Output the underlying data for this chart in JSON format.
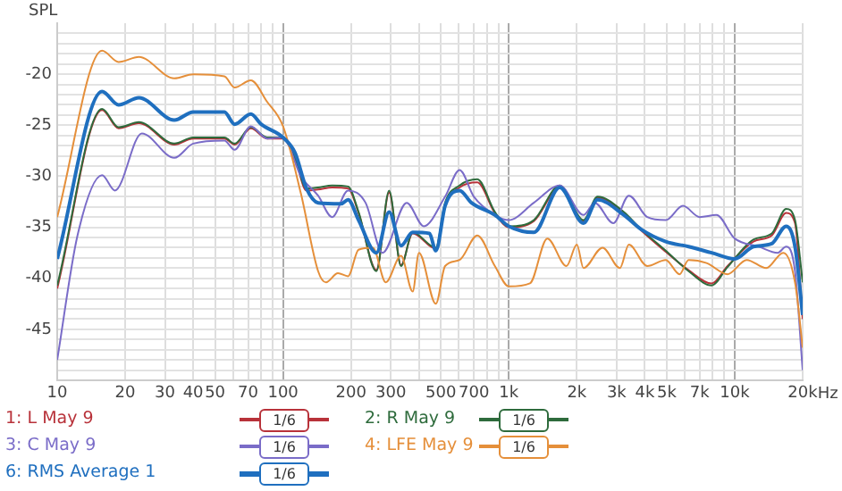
{
  "chart_data": {
    "type": "line",
    "ylabel": "SPL",
    "xlabel": "Hz",
    "log": "x",
    "grid": true,
    "legend": "bottom",
    "marker": "none",
    "line_style": "solid",
    "xlim": [
      10,
      20000
    ],
    "ylim": [
      -50,
      -15
    ],
    "xticks": [
      10,
      20,
      30,
      40,
      50,
      {
        "value": 60,
        "label": null
      },
      70,
      {
        "value": 80,
        "label": null
      },
      {
        "value": 90,
        "label": null
      },
      100,
      200,
      300,
      {
        "value": 400,
        "label": null
      },
      500,
      {
        "value": 600,
        "label": null
      },
      700,
      {
        "value": 800,
        "label": null
      },
      {
        "value": 900,
        "label": null
      },
      {
        "value": 1000,
        "label": "1k"
      },
      {
        "value": 2000,
        "label": "2k"
      },
      {
        "value": 3000,
        "label": "3k"
      },
      {
        "value": 4000,
        "label": "4k"
      },
      {
        "value": 5000,
        "label": "5k"
      },
      {
        "value": 6000,
        "label": null
      },
      {
        "value": 7000,
        "label": "7k"
      },
      {
        "value": 8000,
        "label": null
      },
      {
        "value": 9000,
        "label": null
      },
      {
        "value": 10000,
        "label": "10k"
      },
      {
        "value": 20000,
        "label": "20k"
      }
    ],
    "yticks": [
      {
        "value": -49,
        "label": null
      },
      {
        "value": -48,
        "label": null
      },
      {
        "value": -47,
        "label": null
      },
      {
        "value": -46,
        "label": null
      },
      -45,
      {
        "value": -44,
        "label": null
      },
      {
        "value": -43,
        "label": null
      },
      {
        "value": -42,
        "label": null
      },
      {
        "value": -41,
        "label": null
      },
      -40,
      {
        "value": -39,
        "label": null
      },
      {
        "value": -38,
        "label": null
      },
      {
        "value": -37,
        "label": null
      },
      {
        "value": -36,
        "label": null
      },
      -35,
      {
        "value": -34,
        "label": null
      },
      {
        "value": -33,
        "label": null
      },
      {
        "value": -32,
        "label": null
      },
      {
        "value": -31,
        "label": null
      },
      -30,
      {
        "value": -29,
        "label": null
      },
      {
        "value": -28,
        "label": null
      },
      {
        "value": -27,
        "label": null
      },
      {
        "value": -26,
        "label": null
      },
      -25,
      {
        "value": -24,
        "label": null
      },
      {
        "value": -23,
        "label": null
      },
      {
        "value": -22,
        "label": null
      },
      {
        "value": -21,
        "label": null
      },
      -20,
      {
        "value": -19,
        "label": null
      },
      {
        "value": -18,
        "label": null
      },
      {
        "value": -17,
        "label": null
      },
      {
        "value": -16,
        "label": null
      }
    ],
    "annotations": [
      "1/6",
      "1/6",
      "1/6",
      "1/6",
      "1/6"
    ],
    "series": [
      {
        "name": "1: L May 9",
        "color": "#b8323a",
        "x": [
          10,
          15.8,
          18.7,
          23,
          33,
          40,
          55,
          61,
          72,
          85,
          100,
          113,
          127,
          143,
          165,
          194,
          216,
          259,
          295,
          333,
          375,
          475,
          522,
          605,
          725,
          867,
          1000,
          1290,
          1680,
          2140,
          2470,
          3230,
          3850,
          4950,
          6250,
          7900,
          9300,
          12100,
          14600,
          16900,
          18500,
          20000
        ],
        "values": [
          -41,
          -23.5,
          -25.3,
          -24.8,
          -26.9,
          -26.3,
          -26.3,
          -26.9,
          -25.3,
          -26.3,
          -26.3,
          -28.3,
          -31.4,
          -31.3,
          -31.1,
          -31.2,
          -33.6,
          -39.2,
          -31.6,
          -38.7,
          -35.6,
          -37.1,
          -32.8,
          -31.1,
          -30.6,
          -33.6,
          -35,
          -34.4,
          -31.1,
          -34.4,
          -32.1,
          -33.6,
          -35.3,
          -37.4,
          -39.2,
          -40.5,
          -38.8,
          -36.4,
          -35.8,
          -33.6,
          -34.6,
          -44
        ]
      },
      {
        "name": "2: R May 9",
        "color": "#2e6b3c",
        "x": [
          10,
          15.8,
          18.7,
          23,
          33,
          40,
          55,
          61,
          72,
          85,
          100,
          113,
          127,
          143,
          165,
          194,
          216,
          259,
          295,
          333,
          375,
          475,
          522,
          605,
          725,
          867,
          1000,
          1290,
          1680,
          2140,
          2470,
          3230,
          3850,
          4950,
          6250,
          7900,
          9300,
          12100,
          14600,
          16900,
          18500,
          20000
        ],
        "values": [
          -40.7,
          -23.4,
          -25.2,
          -24.7,
          -26.8,
          -26.2,
          -26.2,
          -26.8,
          -25.2,
          -26.2,
          -26.2,
          -28.2,
          -31.2,
          -31.1,
          -30.9,
          -31,
          -33.5,
          -39.3,
          -31.4,
          -38.8,
          -35.5,
          -37,
          -32.6,
          -30.9,
          -30.3,
          -33.5,
          -34.9,
          -34.3,
          -30.9,
          -34.3,
          -32,
          -33.5,
          -35.2,
          -37.3,
          -39.3,
          -40.7,
          -38.9,
          -36.2,
          -35.6,
          -33.2,
          -34.3,
          -40.4
        ]
      },
      {
        "name": "3: C May 9",
        "color": "#7a6cc8",
        "x": [
          10,
          12.3,
          15.8,
          18,
          23.7,
          33,
          40,
          55,
          61,
          72,
          85,
          100,
          120,
          143,
          165,
          194,
          232,
          276,
          353,
          420,
          522,
          605,
          700,
          867,
          1000,
          1290,
          1680,
          2140,
          2400,
          2900,
          3400,
          4100,
          4950,
          5900,
          7000,
          8300,
          10000,
          12800,
          15500,
          16900,
          18500,
          20000
        ],
        "values": [
          -48,
          -35.8,
          -29.9,
          -31.4,
          -25.8,
          -28.2,
          -26.8,
          -26.5,
          -27.4,
          -25.1,
          -26.3,
          -26.2,
          -30,
          -31.9,
          -34,
          -31.4,
          -32.6,
          -37.5,
          -32.6,
          -34.9,
          -32,
          -29.4,
          -32,
          -33.8,
          -34.3,
          -32.6,
          -30.9,
          -33.8,
          -32.6,
          -34.6,
          -31.9,
          -34,
          -34.3,
          -32.9,
          -34,
          -33.8,
          -36.1,
          -36.9,
          -37.5,
          -36.9,
          -39.3,
          -49
        ]
      },
      {
        "name": "4: LFE May 9",
        "color": "#e58f3a",
        "x": [
          10,
          15.8,
          18.7,
          23,
          33,
          40,
          55,
          61,
          72,
          85,
          100,
          120,
          143,
          155,
          175,
          194,
          216,
          250,
          285,
          333,
          375,
          400,
          475,
          522,
          605,
          725,
          867,
          1000,
          1240,
          1480,
          1800,
          2000,
          2140,
          2600,
          3100,
          3400,
          4100,
          4950,
          5700,
          6250,
          7500,
          9300,
          11300,
          13800,
          16400,
          18500,
          20000
        ],
        "values": [
          -34,
          -17.7,
          -18.8,
          -18.3,
          -20.4,
          -20,
          -20.2,
          -21.3,
          -20.6,
          -22.7,
          -25.1,
          -31.7,
          -39.3,
          -40.4,
          -39.5,
          -39.8,
          -37.2,
          -37,
          -40.4,
          -37.8,
          -41.3,
          -37.5,
          -42.5,
          -38.8,
          -38.2,
          -35.8,
          -38.8,
          -40.8,
          -40.5,
          -36.1,
          -38.8,
          -36.7,
          -39,
          -37,
          -39,
          -36.7,
          -38.8,
          -38.2,
          -39.6,
          -38.2,
          -38.5,
          -39.6,
          -38.2,
          -39,
          -37.5,
          -40.4,
          -46.8
        ]
      },
      {
        "name": "6: RMS Average 1",
        "color": "#1f6fbf",
        "x": [
          10,
          15.8,
          18.7,
          23,
          33,
          40,
          55,
          61,
          72,
          80,
          100,
          113,
          127,
          143,
          181,
          194,
          216,
          259,
          295,
          333,
          375,
          445,
          475,
          522,
          605,
          683,
          867,
          1000,
          1290,
          1680,
          2140,
          2470,
          3230,
          3850,
          4950,
          6250,
          7900,
          10000,
          12100,
          14600,
          16900,
          18500,
          20000
        ],
        "values": [
          -38.1,
          -21.7,
          -23,
          -22.3,
          -24.5,
          -23.7,
          -23.7,
          -24.9,
          -23.9,
          -24.9,
          -26.2,
          -27.7,
          -31.2,
          -32.6,
          -32.7,
          -32.3,
          -34.3,
          -37.5,
          -33.5,
          -36.8,
          -35.5,
          -35.6,
          -37.3,
          -32.9,
          -31.4,
          -32.6,
          -33.8,
          -34.9,
          -35.5,
          -31.1,
          -34.6,
          -32.3,
          -33.8,
          -35.2,
          -36.4,
          -36.9,
          -37.5,
          -38.1,
          -36.9,
          -36.6,
          -34.9,
          -36.9,
          -43.6
        ]
      }
    ]
  }
}
